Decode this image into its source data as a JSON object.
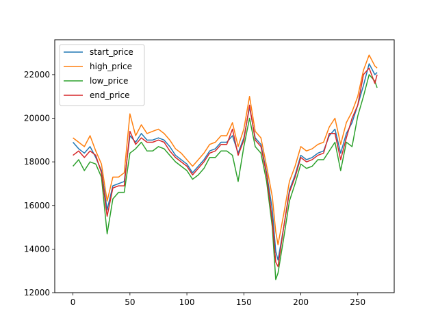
{
  "chart_data": {
    "type": "line",
    "xlim": [
      -16,
      282
    ],
    "ylim": [
      12000,
      23600
    ],
    "xticks": [
      0,
      50,
      100,
      150,
      200,
      250
    ],
    "yticks": [
      12000,
      14000,
      16000,
      18000,
      20000,
      22000
    ],
    "xtick_labels": [
      "0",
      "50",
      "100",
      "150",
      "200",
      "250"
    ],
    "ytick_labels": [
      "12000",
      "14000",
      "16000",
      "18000",
      "20000",
      "22000"
    ],
    "grid": false,
    "legend_position": "top-left",
    "x": [
      0,
      5,
      10,
      15,
      20,
      25,
      30,
      35,
      40,
      45,
      50,
      55,
      60,
      65,
      70,
      75,
      80,
      85,
      90,
      95,
      100,
      105,
      110,
      115,
      120,
      125,
      130,
      135,
      140,
      145,
      150,
      155,
      160,
      165,
      170,
      175,
      178,
      180,
      185,
      190,
      195,
      200,
      205,
      210,
      215,
      220,
      225,
      230,
      235,
      240,
      245,
      250,
      255,
      260,
      265,
      267
    ],
    "series": [
      {
        "name": "start_price",
        "color": "#1f77b4",
        "values": [
          18900,
          18600,
          18400,
          18700,
          18200,
          17600,
          15800,
          16900,
          17000,
          17100,
          19200,
          18900,
          19300,
          19000,
          19000,
          19100,
          19000,
          18700,
          18300,
          18100,
          17900,
          17500,
          17800,
          18100,
          18500,
          18600,
          18900,
          18900,
          19200,
          18400,
          19100,
          20500,
          19100,
          18800,
          17500,
          15800,
          13900,
          13500,
          15000,
          16700,
          17400,
          18300,
          18100,
          18200,
          18400,
          18500,
          19200,
          19500,
          18400,
          19300,
          19800,
          20600,
          21500,
          22500,
          22000,
          22100
        ]
      },
      {
        "name": "high_price",
        "color": "#ff7f0e",
        "values": [
          19100,
          18900,
          18700,
          19200,
          18500,
          17900,
          16200,
          17300,
          17300,
          17500,
          20200,
          19200,
          19700,
          19300,
          19400,
          19500,
          19300,
          19000,
          18600,
          18400,
          18100,
          17800,
          18100,
          18400,
          18800,
          18900,
          19200,
          19200,
          19800,
          18700,
          19500,
          21000,
          19400,
          19100,
          17800,
          16400,
          14800,
          14200,
          15600,
          17100,
          17800,
          18700,
          18500,
          18600,
          18800,
          18900,
          19600,
          20000,
          18800,
          19800,
          20300,
          21000,
          22200,
          22900,
          22400,
          22300
        ]
      },
      {
        "name": "low_price",
        "color": "#2ca02c",
        "values": [
          17800,
          18100,
          17600,
          18000,
          17900,
          17300,
          14700,
          16300,
          16600,
          16600,
          18400,
          18600,
          18900,
          18500,
          18500,
          18700,
          18600,
          18300,
          18000,
          17800,
          17600,
          17200,
          17400,
          17700,
          18200,
          18200,
          18500,
          18500,
          18300,
          17100,
          18700,
          20000,
          18700,
          18400,
          17100,
          15000,
          12600,
          12900,
          14500,
          16200,
          17000,
          17900,
          17700,
          17800,
          18100,
          18100,
          18500,
          18900,
          17600,
          18900,
          18700,
          20100,
          21000,
          22000,
          21700,
          21400
        ]
      },
      {
        "name": "end_price",
        "color": "#d62728",
        "values": [
          18300,
          18500,
          18200,
          18500,
          18300,
          17500,
          15500,
          16800,
          16900,
          16900,
          19400,
          18800,
          19100,
          18900,
          18900,
          19000,
          18900,
          18500,
          18200,
          18000,
          17800,
          17400,
          17700,
          18000,
          18400,
          18500,
          18800,
          18800,
          19500,
          18300,
          19000,
          20600,
          19000,
          18700,
          17400,
          15300,
          13400,
          13200,
          15000,
          16600,
          17300,
          18200,
          18000,
          18100,
          18300,
          18400,
          19300,
          19300,
          18100,
          19100,
          20000,
          20600,
          22000,
          22300,
          21600,
          22000
        ]
      }
    ]
  }
}
